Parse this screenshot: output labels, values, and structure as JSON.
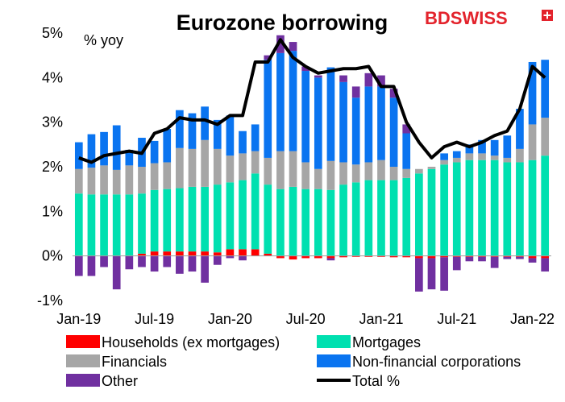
{
  "brand": {
    "name": "BDSWISS",
    "color": "#e3232c"
  },
  "chart_data": {
    "type": "bar",
    "title": "Eurozone borrowing",
    "ylabel": "% yoy",
    "ylim": [
      -1,
      5
    ],
    "yticks": [
      -1,
      0,
      1,
      2,
      3,
      4,
      5
    ],
    "ytick_labels": [
      "-1%",
      "0%",
      "1%",
      "2%",
      "3%",
      "4%",
      "5%"
    ],
    "xtick_labels": [
      {
        "index": 0,
        "label": "Jan-19"
      },
      {
        "index": 6,
        "label": "Jul-19"
      },
      {
        "index": 12,
        "label": "Jan-20"
      },
      {
        "index": 18,
        "label": "Jul-20"
      },
      {
        "index": 24,
        "label": "Jan-21"
      },
      {
        "index": 30,
        "label": "Jul-21"
      },
      {
        "index": 36,
        "label": "Jan-22"
      }
    ],
    "categories": [
      "Jan-19",
      "Feb-19",
      "Mar-19",
      "Apr-19",
      "May-19",
      "Jun-19",
      "Jul-19",
      "Aug-19",
      "Sep-19",
      "Oct-19",
      "Nov-19",
      "Dec-19",
      "Jan-20",
      "Feb-20",
      "Mar-20",
      "Apr-20",
      "May-20",
      "Jun-20",
      "Jul-20",
      "Aug-20",
      "Sep-20",
      "Oct-20",
      "Nov-20",
      "Dec-20",
      "Jan-21",
      "Feb-21",
      "Mar-21",
      "Apr-21",
      "May-21",
      "Jun-21",
      "Jul-21",
      "Aug-21",
      "Sep-21",
      "Oct-21",
      "Nov-21",
      "Dec-21",
      "Jan-22",
      "Feb-22"
    ],
    "legend_position": "bottom",
    "grid": false,
    "series": [
      {
        "name": "Households (ex mortgages)",
        "kind": "bar",
        "color": "#ff0000",
        "values": [
          0,
          0,
          0,
          0,
          0,
          0.05,
          0.1,
          0.1,
          0.1,
          0.1,
          0.1,
          0.08,
          0.15,
          0.15,
          0.15,
          0.05,
          -0.05,
          -0.08,
          -0.05,
          -0.05,
          -0.05,
          -0.03,
          -0.02,
          -0.02,
          -0.02,
          -0.03,
          -0.03,
          -0.05,
          -0.05,
          -0.03,
          -0.02,
          -0.02,
          -0.02,
          -0.02,
          -0.02,
          -0.02,
          -0.05,
          -0.05
        ]
      },
      {
        "name": "Mortgages",
        "kind": "bar",
        "color": "#00e0b0",
        "values": [
          1.4,
          1.38,
          1.38,
          1.38,
          1.38,
          1.35,
          1.38,
          1.4,
          1.42,
          1.45,
          1.45,
          1.52,
          1.5,
          1.55,
          1.7,
          1.55,
          1.5,
          1.55,
          1.5,
          1.5,
          1.48,
          1.6,
          1.65,
          1.7,
          1.7,
          1.7,
          1.75,
          1.85,
          1.95,
          2.05,
          2.1,
          2.15,
          2.15,
          2.15,
          2.1,
          2.1,
          2.15,
          2.25
        ]
      },
      {
        "name": "Financials",
        "kind": "bar",
        "color": "#a6a6a6",
        "values": [
          0.55,
          0.6,
          0.65,
          0.55,
          0.65,
          0.6,
          0.6,
          0.6,
          0.9,
          0.85,
          1.05,
          0.8,
          0.6,
          0.6,
          0.5,
          0.6,
          0.85,
          0.8,
          0.6,
          0.45,
          0.65,
          0.5,
          0.4,
          0.4,
          0.45,
          0.3,
          0.2,
          0.1,
          0.05,
          0.1,
          0.1,
          0.15,
          0.15,
          0.1,
          0.1,
          0.3,
          0.8,
          0.85
        ]
      },
      {
        "name": "Non-financial corporations",
        "kind": "bar",
        "color": "#0a74f0",
        "values": [
          0.6,
          0.75,
          0.75,
          1.0,
          0.35,
          0.65,
          0.5,
          0.75,
          0.85,
          0.8,
          0.75,
          0.65,
          0.9,
          0.5,
          0.6,
          2.2,
          2.2,
          2.25,
          2.05,
          2.05,
          2.1,
          1.8,
          1.5,
          1.7,
          1.65,
          1.55,
          0.8,
          0.0,
          0.0,
          0.15,
          0.15,
          0.2,
          0.3,
          0.35,
          0.5,
          0.9,
          1.4,
          1.3
        ]
      },
      {
        "name": "Other",
        "kind": "bar",
        "color": "#7030a0",
        "values": [
          -0.45,
          -0.45,
          -0.25,
          -0.75,
          -0.3,
          -0.25,
          -0.35,
          -0.25,
          -0.4,
          -0.35,
          -0.6,
          -0.2,
          -0.05,
          -0.1,
          0.0,
          0.1,
          0.4,
          0.2,
          0.1,
          0.05,
          -0.05,
          0.15,
          0.25,
          0.3,
          0.25,
          0.2,
          0.2,
          -0.75,
          -0.7,
          -0.75,
          -0.3,
          -0.1,
          -0.1,
          -0.25,
          -0.05,
          -0.05,
          -0.1,
          -0.3
        ]
      },
      {
        "name": "Total %",
        "kind": "line",
        "color": "#000000",
        "values": [
          2.2,
          2.1,
          2.25,
          2.3,
          2.35,
          2.3,
          2.75,
          2.85,
          3.1,
          3.05,
          3.05,
          2.95,
          3.15,
          3.15,
          4.35,
          4.35,
          4.85,
          4.45,
          4.25,
          4.1,
          4.15,
          4.2,
          4.2,
          4.25,
          3.8,
          3.8,
          3.0,
          2.55,
          2.2,
          2.45,
          2.55,
          2.45,
          2.55,
          2.7,
          2.8,
          3.3,
          4.25,
          4.0
        ]
      }
    ]
  },
  "legend": {
    "items": [
      {
        "label": "Households (ex mortgages)",
        "color": "#ff0000",
        "kind": "bar"
      },
      {
        "label": "Mortgages",
        "color": "#00e0b0",
        "kind": "bar"
      },
      {
        "label": "Financials",
        "color": "#a6a6a6",
        "kind": "bar"
      },
      {
        "label": "Non-financial corporations",
        "color": "#0a74f0",
        "kind": "bar"
      },
      {
        "label": "Other",
        "color": "#7030a0",
        "kind": "bar"
      },
      {
        "label": "Total %",
        "color": "#000000",
        "kind": "line"
      }
    ]
  }
}
